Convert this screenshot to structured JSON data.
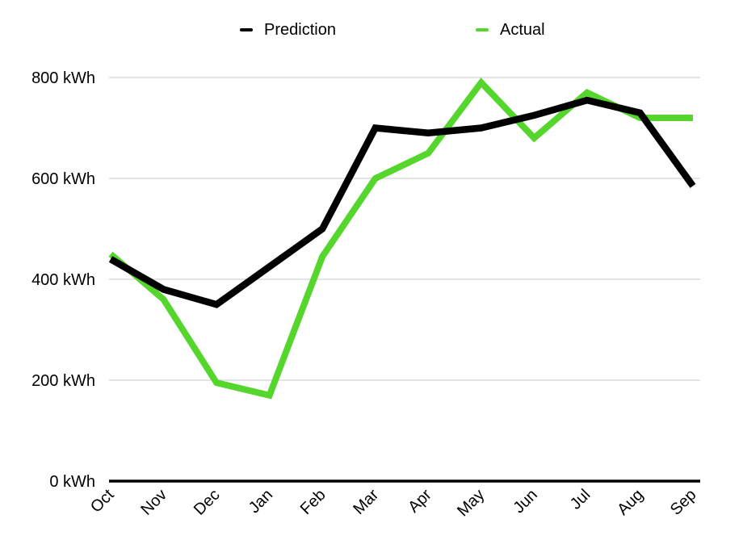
{
  "chart_data": {
    "type": "line",
    "categories": [
      "Oct",
      "Nov",
      "Dec",
      "Jan",
      "Feb",
      "Mar",
      "Apr",
      "May",
      "Jun",
      "Jul",
      "Aug",
      "Sep"
    ],
    "series": [
      {
        "name": "Prediction",
        "color": "#000000",
        "values": [
          440,
          380,
          350,
          425,
          500,
          700,
          690,
          700,
          725,
          755,
          730,
          585
        ]
      },
      {
        "name": "Actual",
        "color": "#55d62d",
        "values": [
          450,
          360,
          195,
          170,
          445,
          600,
          650,
          790,
          680,
          770,
          720,
          720
        ]
      }
    ],
    "y_ticks": [
      0,
      200,
      400,
      600,
      800
    ],
    "y_tick_labels": [
      "0 kWh",
      "200 kWh",
      "400 kWh",
      "600 kWh",
      "800 kWh"
    ],
    "ylim": [
      0,
      800
    ],
    "unit": "kWh",
    "grid": true,
    "legend_position": "top",
    "x_label_rotation": -45,
    "colors": {
      "grid": "#c9c9c9",
      "axis": "#000000",
      "text": "#000000",
      "background": "#ffffff"
    }
  }
}
